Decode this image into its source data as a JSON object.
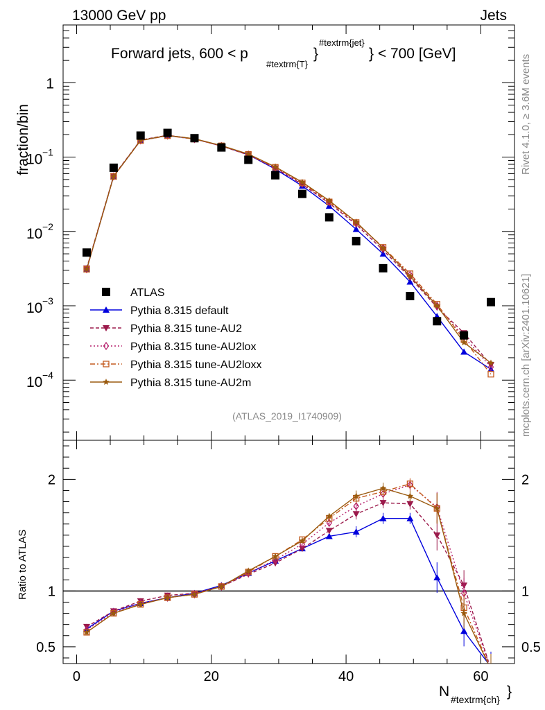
{
  "header": {
    "left": "13000 GeV pp",
    "right": "Jets"
  },
  "title": {
    "main": "Forward jets, 600 < p",
    "sub_T": "#textrm{T}",
    "sup_jet": "#textrm{jet}",
    "tail": "} < 700 [GeV]",
    "brace": "}"
  },
  "watermark": "(ATLAS_2019_I1740909)",
  "side_labels": {
    "rivet": "Rivet 4.1.0, ≥ 3.6M events",
    "mcplots": "mcplots.cern.ch [arXiv:2401.10621]"
  },
  "axes": {
    "top_ylabel": "fraction/bin",
    "bottom_ylabel": "Ratio to ATLAS",
    "xlabel_main": "N",
    "xlabel_sub": "#textrm{ch}",
    "xlabel_tail": "}",
    "x_ticks": [
      "0",
      "20",
      "40",
      "60"
    ],
    "top_y_ticks": [
      {
        "value": 1,
        "mant": "1",
        "exp": ""
      },
      {
        "value": 0.1,
        "mant": "10",
        "exp": "−1"
      },
      {
        "value": 0.01,
        "mant": "10",
        "exp": "−2"
      },
      {
        "value": 0.001,
        "mant": "10",
        "exp": "−3"
      },
      {
        "value": 0.0001,
        "mant": "10",
        "exp": "−4"
      }
    ],
    "ratio_y_ticks": [
      {
        "value": 2,
        "label": "2"
      },
      {
        "value": 1,
        "label": "1"
      },
      {
        "value": 0.5,
        "label": "0.5"
      }
    ]
  },
  "legend": [
    {
      "label": "ATLAS",
      "color": "#000000",
      "marker": "square",
      "dash": ""
    },
    {
      "label": "Pythia 8.315 default",
      "color": "#0000dd",
      "marker": "triangle-up",
      "dash": ""
    },
    {
      "label": "Pythia 8.315 tune-AU2",
      "color": "#9b1a4b",
      "marker": "triangle-down",
      "dash": "5,3"
    },
    {
      "label": "Pythia 8.315 tune-AU2lox",
      "color": "#b51e6b",
      "marker": "diamond",
      "dash": "2,3"
    },
    {
      "label": "Pythia 8.315 tune-AU2loxx",
      "color": "#c45a1e",
      "marker": "square-open",
      "dash": "7,3,2,3"
    },
    {
      "label": "Pythia 8.315 tune-AU2m",
      "color": "#9a5a0e",
      "marker": "star",
      "dash": ""
    }
  ],
  "chart_data": {
    "type": "line",
    "title": "Forward jets, 600 < p_T^jet < 700 [GeV]",
    "xlabel": "N_ch",
    "ylabel": "fraction/bin",
    "ratio_ylabel": "Ratio to ATLAS",
    "xlim": [
      -2,
      65
    ],
    "ylim": [
      1.55e-05,
      6
    ],
    "ratio_ylim": [
      0.35,
      2.35
    ],
    "yscale": "log",
    "x": [
      1.5,
      5.5,
      9.5,
      13.5,
      17.5,
      21.5,
      25.5,
      29.5,
      33.5,
      37.5,
      41.5,
      45.5,
      49.5,
      53.5,
      57.5,
      61.5
    ],
    "data": {
      "name": "ATLAS",
      "values": [
        0.0052,
        0.072,
        0.195,
        0.212,
        0.18,
        0.135,
        0.092,
        0.057,
        0.032,
        0.0155,
        0.0074,
        0.0032,
        0.00135,
        0.00062,
        0.0004,
        0.00112
      ]
    },
    "series": [
      {
        "name": "Pythia 8.315 default",
        "values": [
          0.0031,
          0.055,
          0.168,
          0.195,
          0.176,
          0.142,
          0.108,
          0.069,
          0.041,
          0.022,
          0.0107,
          0.005,
          0.0021,
          0.00072,
          0.00024,
          0.00014
        ],
        "ratio": [
          0.66,
          0.82,
          0.89,
          0.94,
          0.98,
          1.05,
          1.16,
          1.27,
          1.38,
          1.49,
          1.53,
          1.65,
          1.65,
          1.12,
          0.64,
          0.32
        ]
      },
      {
        "name": "Pythia 8.315 tune-AU2",
        "values": [
          0.0032,
          0.056,
          0.17,
          0.197,
          0.176,
          0.141,
          0.107,
          0.071,
          0.043,
          0.024,
          0.0124,
          0.0056,
          0.0024,
          0.00095,
          0.00043,
          0.00016
        ],
        "ratio": [
          0.68,
          0.82,
          0.91,
          0.96,
          0.98,
          1.04,
          1.15,
          1.25,
          1.38,
          1.54,
          1.69,
          1.79,
          1.78,
          1.5,
          1.05,
          0.3
        ]
      },
      {
        "name": "Pythia 8.315 tune-AU2lox",
        "values": [
          0.0031,
          0.055,
          0.168,
          0.195,
          0.175,
          0.141,
          0.108,
          0.072,
          0.044,
          0.025,
          0.013,
          0.006,
          0.0026,
          0.001,
          0.00038,
          0.00015
        ],
        "ratio": [
          0.65,
          0.81,
          0.89,
          0.94,
          0.97,
          1.04,
          1.16,
          1.28,
          1.42,
          1.61,
          1.76,
          1.87,
          1.95,
          1.75,
          0.98,
          0.3
        ]
      },
      {
        "name": "Pythia 8.315 tune-AU2loxx",
        "values": [
          0.0031,
          0.055,
          0.167,
          0.194,
          0.175,
          0.142,
          0.109,
          0.073,
          0.045,
          0.025,
          0.0132,
          0.0061,
          0.0027,
          0.00105,
          0.00035,
          0.00012
        ],
        "ratio": [
          0.63,
          0.8,
          0.88,
          0.94,
          0.97,
          1.04,
          1.17,
          1.31,
          1.46,
          1.65,
          1.83,
          1.89,
          1.96,
          1.74,
          0.85,
          0.3
        ]
      },
      {
        "name": "Pythia 8.315 tune-AU2m",
        "values": [
          0.0031,
          0.055,
          0.168,
          0.196,
          0.177,
          0.143,
          0.11,
          0.074,
          0.046,
          0.026,
          0.0134,
          0.006,
          0.0025,
          0.001,
          0.00032,
          0.00017
        ],
        "ratio": [
          0.63,
          0.8,
          0.88,
          0.94,
          0.97,
          1.04,
          1.18,
          1.31,
          1.45,
          1.67,
          1.85,
          1.92,
          1.85,
          1.74,
          0.8,
          0.3
        ]
      }
    ]
  }
}
